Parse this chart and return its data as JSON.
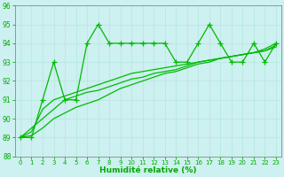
{
  "background_color": "#cdf0f0",
  "grid_color": "#aaddcc",
  "line_color": "#00bb00",
  "xlabel": "Humidité relative (%)",
  "xlabel_color": "#00aa00",
  "tick_color": "#00aa00",
  "spine_color": "#888888",
  "ylim": [
    88,
    96
  ],
  "xlim": [
    -0.5,
    23.5
  ],
  "yticks": [
    88,
    89,
    90,
    91,
    92,
    93,
    94,
    95,
    96
  ],
  "xticks": [
    0,
    1,
    2,
    3,
    4,
    5,
    6,
    7,
    8,
    9,
    10,
    11,
    12,
    13,
    14,
    15,
    16,
    17,
    18,
    19,
    20,
    21,
    22,
    23
  ],
  "series_jagged": [
    89,
    89,
    91,
    93,
    91,
    91,
    94,
    95,
    94,
    94,
    94,
    94,
    94,
    94,
    93,
    93,
    94,
    95,
    94,
    93,
    93,
    94,
    93,
    94
  ],
  "series_smooth1": [
    89.0,
    89.3,
    90.5,
    91.0,
    91.2,
    91.4,
    91.6,
    91.8,
    92.0,
    92.2,
    92.4,
    92.5,
    92.6,
    92.7,
    92.8,
    92.9,
    93.0,
    93.1,
    93.2,
    93.3,
    93.4,
    93.5,
    93.6,
    93.8
  ],
  "series_smooth2": [
    89.0,
    89.5,
    90.0,
    90.5,
    91.0,
    91.2,
    91.4,
    91.5,
    91.7,
    91.9,
    92.1,
    92.2,
    92.4,
    92.5,
    92.6,
    92.8,
    93.0,
    93.1,
    93.2,
    93.3,
    93.4,
    93.5,
    93.6,
    93.9
  ],
  "series_smooth3": [
    89.0,
    89.1,
    89.5,
    90.0,
    90.3,
    90.6,
    90.8,
    91.0,
    91.3,
    91.6,
    91.8,
    92.0,
    92.2,
    92.4,
    92.5,
    92.7,
    92.9,
    93.0,
    93.2,
    93.3,
    93.4,
    93.5,
    93.7,
    94.0
  ]
}
